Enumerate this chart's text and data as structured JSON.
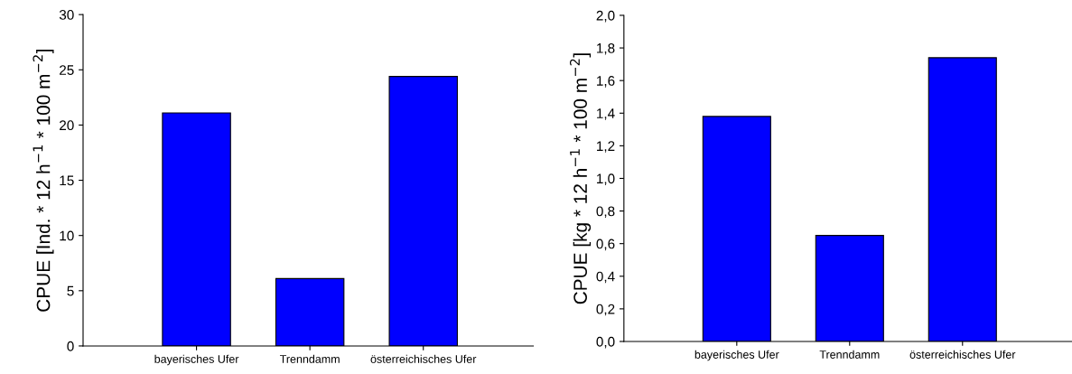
{
  "chart_data": [
    {
      "type": "bar",
      "categories": [
        "bayerisches Ufer",
        "Trenndamm",
        "österreichisches Ufer"
      ],
      "values": [
        21.1,
        6.1,
        24.4
      ],
      "color": "#0000ff",
      "ylabel": "CPUE [Ind. * 12 h$^{−1}$ * 100 m$^{−2}$]",
      "ylim": [
        0,
        30
      ],
      "yticks": [
        0,
        5,
        10,
        15,
        20,
        25,
        30
      ]
    },
    {
      "type": "bar",
      "categories": [
        "bayerisches Ufer",
        "Trenndamm",
        "österreichisches Ufer"
      ],
      "values": [
        1.38,
        0.65,
        1.74
      ],
      "color": "#0000ff",
      "ylabel": "CPUE [kg * 12 h$^{−1}$ * 100 m$^{−2}$]",
      "ylim": [
        0,
        2.0
      ],
      "yticks": [
        {
          "value": 0,
          "label": "0,0"
        },
        {
          "value": 0.2,
          "label": "0,2"
        },
        {
          "value": 0.4,
          "label": "0,4"
        },
        {
          "value": 0.6,
          "label": "0,6"
        },
        {
          "value": 0.8,
          "label": "0,8"
        },
        {
          "value": 1.0,
          "label": "1,0"
        },
        {
          "value": 1.2,
          "label": "1,2"
        },
        {
          "value": 1.4,
          "label": "1,4"
        },
        {
          "value": 1.6,
          "label": "1,6"
        },
        {
          "value": 1.8,
          "label": "1,8"
        },
        {
          "value": 2.0,
          "label": "2,0"
        }
      ]
    }
  ]
}
